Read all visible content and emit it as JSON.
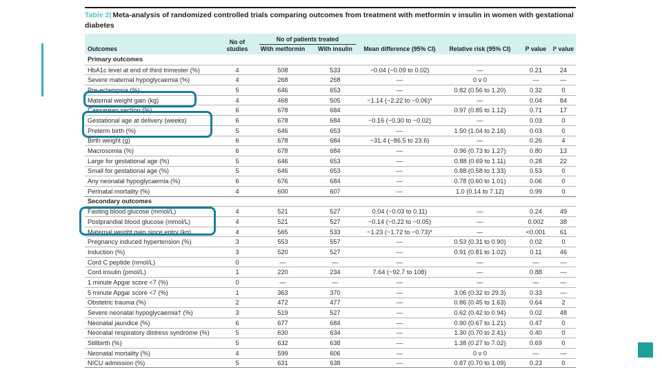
{
  "colors": {
    "accent_line": "#3fa8cc",
    "corner_square": "#20a09a",
    "highlight_box": "#177e9b",
    "header_band": "#d5f0f0",
    "table_label": "#4fc0cd"
  },
  "figure": {
    "label": "Table 2|",
    "title": "Meta-analysis of randomized controlled trials comparing outcomes from treatment with metformin v insulin in women with gestational diabetes",
    "header": {
      "outcomes": "Outcomes",
      "studies": "No of studies",
      "patients_group": "No of patients treated",
      "metformin": "With metformin",
      "insulin": "With insulin",
      "mean_diff": "Mean difference (95% CI)",
      "rr": "Relative risk (95% CI)",
      "p": "P value",
      "i2": "I² value"
    },
    "sections": [
      {
        "name": "Primary outcomes",
        "rows": [
          [
            "HbA1c level at end of third trimester (%)",
            "4",
            "508",
            "533",
            "−0.04 (−0.09 to 0.02)",
            "—",
            "0.21",
            "24"
          ],
          [
            "Severe maternal hypoglycaemia (%)",
            "4",
            "268",
            "268",
            "—",
            "0 v 0",
            "—",
            "—"
          ],
          [
            "Pre-eclampsia (%)",
            "5",
            "646",
            "653",
            "—",
            "0.82 (0.56 to 1.20)",
            "0.32",
            "0"
          ],
          [
            "Maternal weight gain (kg)",
            "4",
            "468",
            "505",
            "−1.14 (−2.22 to −0.06)*",
            "—",
            "0.04",
            "84"
          ],
          [
            "Caesarean section (%)",
            "6",
            "678",
            "684",
            "",
            "0.97 (0.85 to 1.12)",
            "0.71",
            "17"
          ],
          [
            "Gestational age at delivery (weeks)",
            "6",
            "678",
            "684",
            "−0.16 (−0.30 to −0.02)",
            "—",
            "0.03",
            "0"
          ],
          [
            "Preterm birth (%)",
            "5",
            "646",
            "653",
            "—",
            "1.50 (1.04 to 2.16)",
            "0.03",
            "0"
          ],
          [
            "Birth weight (g)",
            "6",
            "678",
            "684",
            "−31.4 (−86.5 to 23.6)",
            "—",
            "0.26",
            "4"
          ],
          [
            "Macrosomia (%)",
            "6",
            "678",
            "684",
            "—",
            "0.96 (0.73 to 1.27)",
            "0.80",
            "13"
          ],
          [
            "Large for gestational age (%)",
            "5",
            "646",
            "653",
            "—",
            "0.88 (0.69 to 1.11)",
            "0.28",
            "22"
          ],
          [
            "Small for gestational age (%)",
            "5",
            "646",
            "653",
            "—",
            "0.88 (0.58 to 1.33)",
            "0.53",
            "0"
          ],
          [
            "Any neonatal hypoglycaemia (%)",
            "6",
            "676",
            "684",
            "—",
            "0.78 (0.60 to 1.01)",
            "0.06",
            "0"
          ],
          [
            "Perinatal mortality (%)",
            "4",
            "600",
            "607",
            "—",
            "1.0 (0.14 to 7.12)",
            "0.99",
            "0"
          ]
        ]
      },
      {
        "name": "Secondary outcomes",
        "rows": [
          [
            "Fasting blood glucose (mmol/L)",
            "4",
            "521",
            "527",
            "0.04 (−0.03 to 0.11)",
            "—",
            "0.24",
            "49"
          ],
          [
            "Postprandial blood glucose (mmol/L)",
            "4",
            "521",
            "527",
            "−0.14 (−0.22 to −0.05)",
            "—",
            "0.002",
            "38"
          ],
          [
            "Maternal weight gain since entry (kg)",
            "4",
            "565",
            "533",
            "−1.23 (−1.72 to −0.73)*",
            "—",
            "<0.001",
            "61"
          ],
          [
            "Pregnancy induced hypertension (%)",
            "3",
            "553",
            "557",
            "—",
            "0.53 (0.31 to 0.90)",
            "0.02",
            "0"
          ],
          [
            "Induction (%)",
            "3",
            "520",
            "527",
            "—",
            "0.91 (0.81 to 1.02)",
            "0.11",
            "46"
          ],
          [
            "Cord C peptide (nmol/L)",
            "0",
            "—",
            "—",
            "—",
            "—",
            "—",
            "—"
          ],
          [
            "Cord insulin (pmol/L)",
            "1",
            "220",
            "234",
            "7.64 (−92.7 to 108)",
            "—",
            "0.88",
            "—"
          ],
          [
            "1 minute Apgar score <7 (%)",
            "0",
            "—",
            "—",
            "—",
            "—",
            "—",
            "—"
          ],
          [
            "5 minute Apgar score <7 (%)",
            "1",
            "363",
            "370",
            "—",
            "3.06 (0.32 to 29.3)",
            "0.33",
            "—"
          ],
          [
            "Obstetric trauma (%)",
            "2",
            "472",
            "477",
            "—",
            "0.86 (0.45 to 1.63)",
            "0.64",
            "2"
          ],
          [
            "Severe neonatal hypoglycaemia† (%)",
            "3",
            "519",
            "527",
            "—",
            "0.62 (0.42 to 0.94)",
            "0.02",
            "48"
          ],
          [
            "Neonatal jaundice (%)",
            "6",
            "677",
            "684",
            "—",
            "0.90 (0.67 to 1.21)",
            "0.47",
            "0"
          ],
          [
            "Neonatal respiratory distress syndrome (%)",
            "5",
            "630",
            "634",
            "—",
            "1.30 (0.70 to 2.41)",
            "0.40",
            "0"
          ],
          [
            "Stillbirth (%)",
            "5",
            "632",
            "638",
            "—",
            "1.38 (0.27 to 7.02)",
            "0.69",
            "0"
          ],
          [
            "Neonatal mortality (%)",
            "4",
            "599",
            "606",
            "—",
            "0 v 0",
            "—",
            "—"
          ],
          [
            "NICU admission (%)",
            "5",
            "631",
            "638",
            "—",
            "0.87 (0.70 to 1.09)",
            "0.23",
            "0"
          ]
        ]
      }
    ],
    "annotations": [
      "Maternal weight gain (kg)",
      "Gestational age at delivery (weeks) / Preterm birth (%)",
      "Postprandial blood glucose (mmol/L) / Maternal weight gain since entry (kg)"
    ]
  }
}
